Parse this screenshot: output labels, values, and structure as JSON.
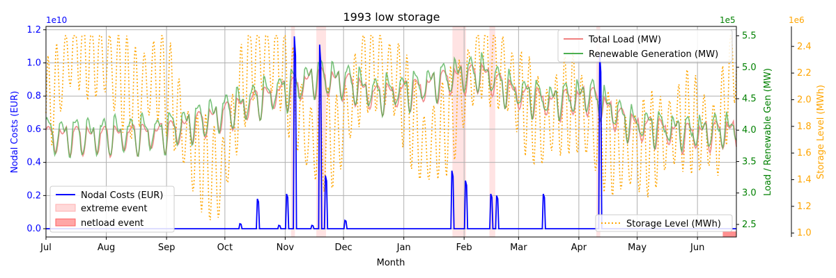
{
  "chart_data": {
    "type": "line",
    "title": "1993 low storage",
    "xlabel": "Month",
    "x_ticks": [
      "Jul",
      "Aug",
      "Sep",
      "Oct",
      "Nov",
      "Dec",
      "Jan",
      "Feb",
      "Mar",
      "Apr",
      "May",
      "Jun"
    ],
    "x_range_days": [
      0,
      355
    ],
    "grid": true,
    "colors": {
      "cost": "#0000ff",
      "load": "#f08080",
      "renewable": "#4caf50",
      "storage": "#ffa500",
      "extreme": "#ffc0c0",
      "netload": "#ff6060"
    },
    "axes": {
      "left": {
        "label": "Nodal Costs (EUR)",
        "offset_text": "1e10",
        "range": [
          -0.05,
          1.22
        ],
        "ticks": [
          0.0,
          0.2,
          0.4,
          0.6,
          0.8,
          1.0,
          1.2
        ],
        "tick_labels": [
          "0.0",
          "0.2",
          "0.4",
          "0.6",
          "0.8",
          "1.0",
          "1.2"
        ]
      },
      "right1": {
        "label": "Load / Renewable Gen (MW)",
        "offset_text": "1e5",
        "range": [
          2.3,
          5.65
        ],
        "ticks": [
          2.5,
          3.0,
          3.5,
          4.0,
          4.5,
          5.0,
          5.5
        ],
        "tick_labels": [
          "2.5",
          "3.0",
          "3.5",
          "4.0",
          "4.5",
          "5.0",
          "5.5"
        ]
      },
      "right2": {
        "label": "Storage Level (MWh)",
        "offset_text": "1e6",
        "range": [
          0.97,
          2.55
        ],
        "ticks": [
          1.0,
          1.2,
          1.4,
          1.6,
          1.8,
          2.0,
          2.2,
          2.4
        ],
        "tick_labels": [
          "1.0",
          "1.2",
          "1.4",
          "1.6",
          "1.8",
          "2.0",
          "2.2",
          "2.4"
        ]
      }
    },
    "legend_left": {
      "placement": "lower-left",
      "items": [
        "Nodal Costs (EUR)",
        "extreme event",
        "netload event"
      ]
    },
    "legend_top_right": {
      "placement": "upper-right",
      "items": [
        "Total Load (MW)",
        "Renewable Generation (MW)"
      ]
    },
    "legend_bottom_right": {
      "placement": "lower-right",
      "items": [
        "Storage Level (MWh)"
      ]
    },
    "extreme_events": [
      [
        126,
        128
      ],
      [
        139,
        144
      ],
      [
        209,
        216
      ],
      [
        228,
        231
      ],
      [
        283,
        285
      ]
    ],
    "netload_events": [
      [
        348,
        355
      ]
    ],
    "cost_spikes": [
      {
        "day": 100,
        "value": 0.03
      },
      {
        "day": 109,
        "value": 0.18
      },
      {
        "day": 120,
        "value": 0.02
      },
      {
        "day": 124,
        "value": 0.21
      },
      {
        "day": 128,
        "value": 1.16
      },
      {
        "day": 137,
        "value": 0.02
      },
      {
        "day": 141,
        "value": 1.11
      },
      {
        "day": 144,
        "value": 0.32
      },
      {
        "day": 154,
        "value": 0.05
      },
      {
        "day": 209,
        "value": 0.35
      },
      {
        "day": 216,
        "value": 0.29
      },
      {
        "day": 229,
        "value": 0.21
      },
      {
        "day": 232,
        "value": 0.2
      },
      {
        "day": 256,
        "value": 0.21
      },
      {
        "day": 285,
        "value": 1.05
      }
    ],
    "load_keypoints": [
      {
        "day": 0,
        "value": 4.0
      },
      {
        "day": 30,
        "value": 4.0
      },
      {
        "day": 60,
        "value": 4.05
      },
      {
        "day": 90,
        "value": 4.35
      },
      {
        "day": 110,
        "value": 4.6
      },
      {
        "day": 125,
        "value": 4.75
      },
      {
        "day": 140,
        "value": 4.95
      },
      {
        "day": 155,
        "value": 4.85
      },
      {
        "day": 170,
        "value": 4.65
      },
      {
        "day": 190,
        "value": 4.75
      },
      {
        "day": 210,
        "value": 4.95
      },
      {
        "day": 225,
        "value": 5.0
      },
      {
        "day": 240,
        "value": 4.7
      },
      {
        "day": 260,
        "value": 4.55
      },
      {
        "day": 280,
        "value": 4.65
      },
      {
        "day": 300,
        "value": 4.2
      },
      {
        "day": 330,
        "value": 4.05
      },
      {
        "day": 355,
        "value": 4.1
      }
    ],
    "storage_keypoints": [
      {
        "day": 0,
        "value": 1.9
      },
      {
        "day": 15,
        "value": 2.45
      },
      {
        "day": 30,
        "value": 2.3
      },
      {
        "day": 45,
        "value": 2.05
      },
      {
        "day": 60,
        "value": 2.2
      },
      {
        "day": 75,
        "value": 1.6
      },
      {
        "day": 90,
        "value": 1.4
      },
      {
        "day": 105,
        "value": 2.35
      },
      {
        "day": 120,
        "value": 2.3
      },
      {
        "day": 135,
        "value": 1.7
      },
      {
        "day": 150,
        "value": 1.7
      },
      {
        "day": 165,
        "value": 2.3
      },
      {
        "day": 180,
        "value": 2.15
      },
      {
        "day": 195,
        "value": 1.6
      },
      {
        "day": 210,
        "value": 1.9
      },
      {
        "day": 225,
        "value": 2.4
      },
      {
        "day": 240,
        "value": 2.1
      },
      {
        "day": 255,
        "value": 1.8
      },
      {
        "day": 270,
        "value": 2.0
      },
      {
        "day": 285,
        "value": 1.7
      },
      {
        "day": 300,
        "value": 1.6
      },
      {
        "day": 315,
        "value": 1.7
      },
      {
        "day": 330,
        "value": 1.85
      },
      {
        "day": 345,
        "value": 1.7
      },
      {
        "day": 355,
        "value": 2.4
      }
    ]
  }
}
